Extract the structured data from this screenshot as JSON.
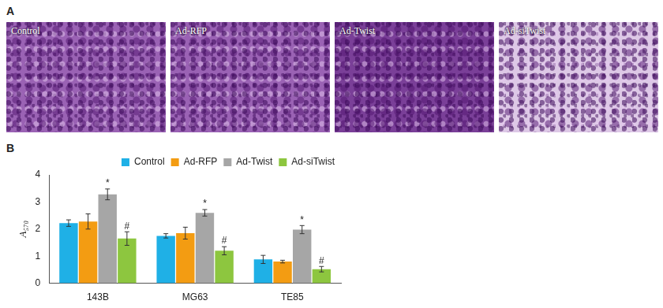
{
  "figure": {
    "panels": [
      {
        "label": "A",
        "image_labels": [
          "Control",
          "Ad-RFP",
          "Ad-Twist",
          "Ad-siTwist"
        ]
      },
      {
        "label": "B"
      }
    ]
  },
  "chart_data": {
    "type": "bar",
    "y_label": "A₅₇₀",
    "categories": [
      "143B",
      "MG63",
      "TE85"
    ],
    "series": [
      {
        "name": "Control",
        "color": "#1fb0e6",
        "values": [
          2.22,
          1.75,
          0.88
        ],
        "error": [
          0.12,
          0.08,
          0.15
        ]
      },
      {
        "name": "Ad-RFP",
        "color": "#f39c12",
        "values": [
          2.28,
          1.85,
          0.8
        ],
        "error": [
          0.28,
          0.22,
          0.05
        ]
      },
      {
        "name": "Ad-Twist",
        "color": "#a6a6a6",
        "values": [
          3.28,
          2.6,
          1.98
        ],
        "error": [
          0.2,
          0.12,
          0.15
        ],
        "annotations": [
          "*",
          "*",
          "*"
        ]
      },
      {
        "name": "Ad-siTwist",
        "color": "#8dc63f",
        "values": [
          1.65,
          1.2,
          0.52
        ],
        "error": [
          0.25,
          0.15,
          0.1
        ],
        "annotations": [
          "#",
          "#",
          "#"
        ]
      }
    ],
    "ylim": [
      0,
      4
    ],
    "yticks": [
      0,
      1,
      2,
      3,
      4
    ],
    "grid": false,
    "legend": "top"
  }
}
